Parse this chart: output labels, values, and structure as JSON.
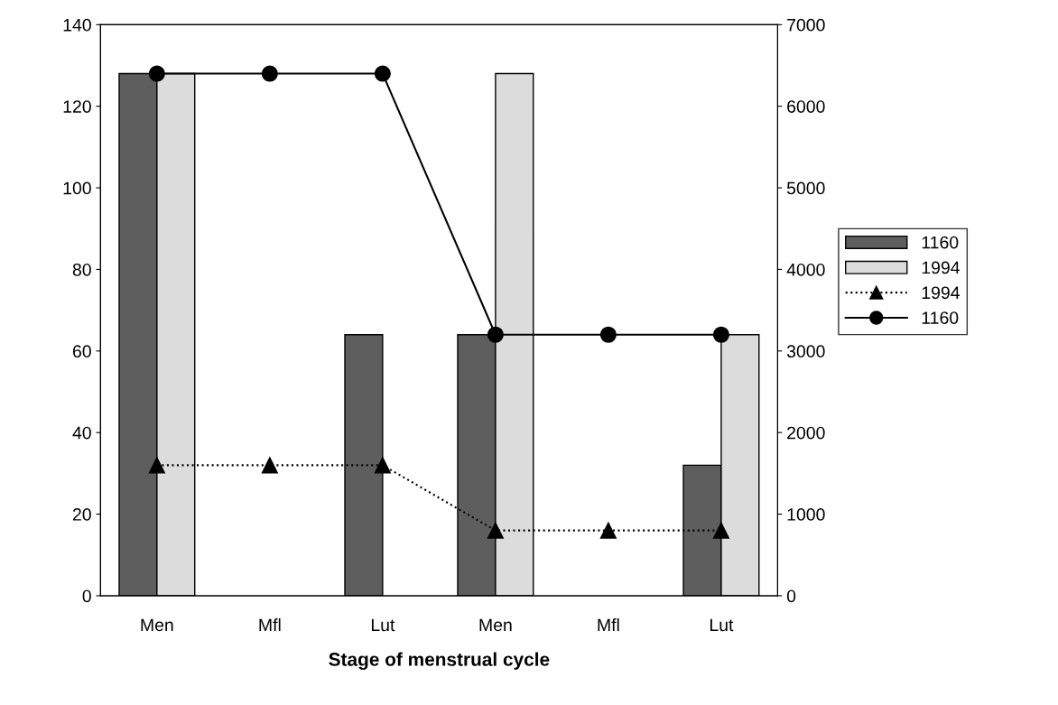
{
  "chart_data": {
    "type": "bar",
    "xlabel": "Stage of menstrual cycle",
    "categories": [
      "Men",
      "Mfl",
      "Lut",
      "Men",
      "Mfl",
      "Lut"
    ],
    "series": [
      {
        "name": "1160",
        "color": "#5e5e5e",
        "values": [
          128,
          null,
          64,
          64,
          null,
          32
        ]
      },
      {
        "name": "1994",
        "color": "#dcdcdc",
        "values": [
          128,
          null,
          null,
          128,
          null,
          64
        ]
      },
      {
        "name": "1994",
        "type": "line",
        "axis": "y2",
        "color": "#000000",
        "marker": "triangle",
        "line_style": "dotted",
        "values": [
          1600,
          1600,
          1600,
          800,
          800,
          800
        ]
      },
      {
        "name": "1160",
        "type": "line",
        "axis": "y2",
        "color": "#000000",
        "marker": "circle",
        "line_style": "solid",
        "values": [
          6400,
          6400,
          6400,
          3200,
          3200,
          3200
        ]
      }
    ],
    "ylim": [
      0,
      140
    ],
    "yticks": [
      0,
      20,
      40,
      60,
      80,
      100,
      120,
      140
    ],
    "y2lim": [
      0,
      7000
    ],
    "y2ticks": [
      0,
      1000,
      2000,
      3000,
      4000,
      5000,
      6000,
      7000
    ],
    "legend": "right"
  }
}
